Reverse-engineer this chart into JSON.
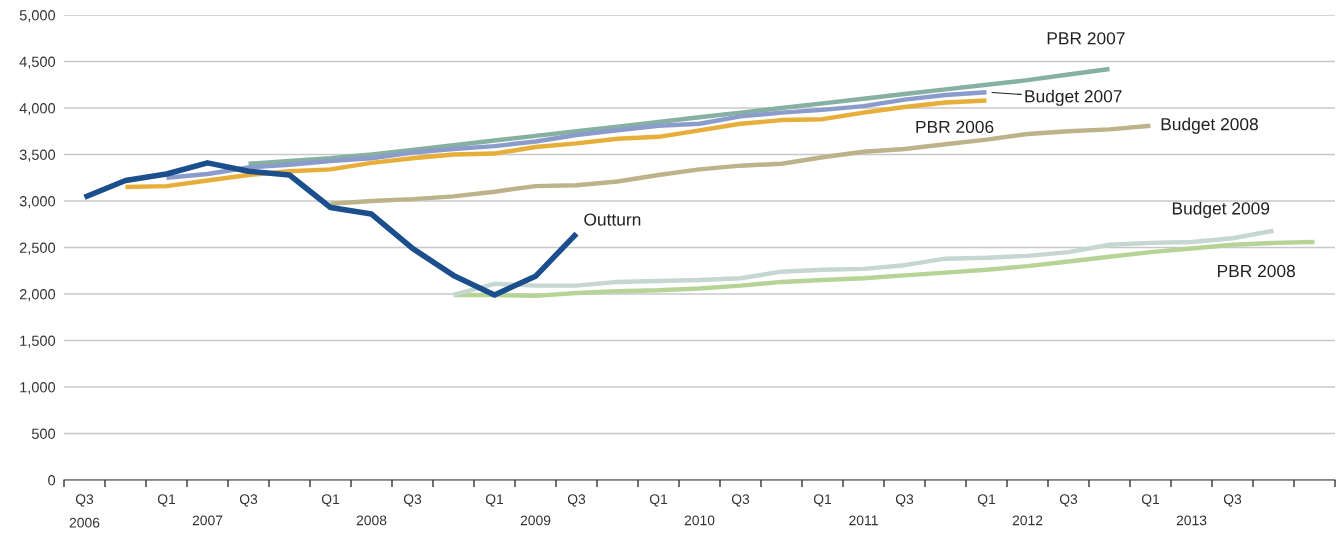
{
  "chart_data": {
    "type": "line",
    "categories": [
      "Q3\n2006",
      null,
      "Q1",
      "\n2007",
      "Q3",
      null,
      "Q1",
      "\n2008",
      "Q3",
      null,
      "Q1",
      "\n2009",
      "Q3",
      null,
      "Q1",
      "\n2010",
      "Q3",
      null,
      "Q1",
      "\n2011",
      "Q3",
      null,
      "Q1",
      "\n2012",
      "Q3",
      null,
      "Q1",
      "\n2013",
      "Q3",
      null,
      null
    ],
    "ylim": [
      0,
      5000
    ],
    "yticks": [
      0,
      500,
      {
        "value": 1000,
        "label": "1,000"
      },
      {
        "value": 1500,
        "label": "1,500"
      },
      {
        "value": 2000,
        "label": "2,000"
      },
      {
        "value": 2500,
        "label": "2,500"
      },
      {
        "value": 3000,
        "label": "3,000"
      },
      {
        "value": 3500,
        "label": "3,500"
      },
      {
        "value": 4000,
        "label": "4,000"
      },
      {
        "value": 4500,
        "label": "4,500"
      },
      {
        "value": 5000,
        "label": "5,000"
      }
    ],
    "grid": "y",
    "legend": false,
    "marker": "none",
    "line_style": "solid",
    "series": [
      {
        "name": "PBR 2008",
        "color": "#b7d497",
        "values": [
          null,
          null,
          null,
          null,
          null,
          null,
          null,
          null,
          null,
          1990,
          1990,
          1980,
          2010,
          2030,
          2040,
          2060,
          2090,
          2130,
          2150,
          2170,
          2200,
          2230,
          2260,
          2300,
          2350,
          2400,
          2450,
          2490,
          2530,
          2550,
          2560
        ]
      },
      {
        "name": "Budget 2009",
        "color": "#c5d6d3",
        "values": [
          null,
          null,
          null,
          null,
          null,
          null,
          null,
          null,
          null,
          1990,
          2110,
          2090,
          2090,
          2130,
          2140,
          2150,
          2170,
          2240,
          2260,
          2270,
          2310,
          2380,
          2390,
          2410,
          2450,
          2530,
          2550,
          2560,
          2600,
          2680,
          null
        ]
      },
      {
        "name": "Budget 2008",
        "color": "#bdb38a",
        "values": [
          null,
          null,
          null,
          null,
          null,
          null,
          2970,
          3000,
          3020,
          3050,
          3100,
          3160,
          3170,
          3210,
          3280,
          3340,
          3380,
          3400,
          3470,
          3530,
          3560,
          3610,
          3660,
          3720,
          3750,
          3770,
          3810,
          null,
          null,
          null,
          null
        ]
      },
      {
        "name": "PBR 2007",
        "color": "#86b0a2",
        "values": [
          null,
          null,
          null,
          null,
          3400,
          3430,
          3460,
          3500,
          3550,
          3600,
          3650,
          3700,
          3750,
          3800,
          3850,
          3900,
          3950,
          4000,
          4050,
          4100,
          4150,
          4200,
          4250,
          4300,
          4360,
          4420,
          null,
          null,
          null,
          null,
          null
        ]
      },
      {
        "name": "Budget 2007",
        "color": "#8b9ccc",
        "values": [
          null,
          null,
          3250,
          3290,
          3360,
          3390,
          3430,
          3460,
          3520,
          3560,
          3590,
          3640,
          3710,
          3760,
          3810,
          3830,
          3910,
          3950,
          3980,
          4020,
          4090,
          4140,
          4170,
          null,
          null,
          null,
          null,
          null,
          null,
          null,
          null
        ]
      },
      {
        "name": "PBR 2006",
        "color": "#e8ae3a",
        "values": [
          null,
          3150,
          3160,
          3220,
          3280,
          3320,
          3340,
          3410,
          3460,
          3500,
          3510,
          3580,
          3620,
          3670,
          3690,
          3760,
          3830,
          3870,
          3880,
          3950,
          4010,
          4060,
          4080,
          null,
          null,
          null,
          null,
          null,
          null,
          null,
          null
        ]
      },
      {
        "name": "Outturn",
        "color": "#1a4e8c",
        "values": [
          3040,
          3220,
          3290,
          3410,
          3320,
          3280,
          2930,
          2860,
          2490,
          2200,
          1990,
          2190,
          2650,
          null,
          null,
          null,
          null,
          null,
          null,
          null,
          null,
          null,
          null,
          null,
          null,
          null,
          null,
          null,
          null,
          null,
          null
        ]
      }
    ]
  }
}
